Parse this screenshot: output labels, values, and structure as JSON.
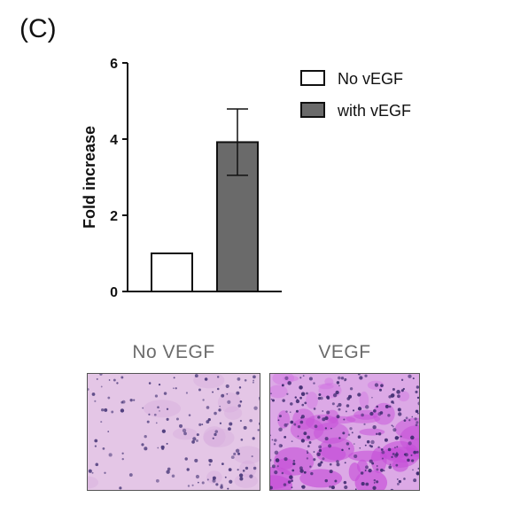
{
  "panel_label": "(C)",
  "chart_data": {
    "type": "bar",
    "categories": [
      "No vEGF",
      "with vEGF"
    ],
    "values": [
      1.0,
      3.92
    ],
    "errors": [
      0,
      0.87
    ],
    "ylabel": "Fold increase",
    "ylim": [
      0,
      6
    ],
    "yticks": [
      0,
      2,
      4,
      6
    ],
    "legend": {
      "position": "top-right",
      "entries": [
        {
          "label": "No vEGF",
          "color": "#ffffff"
        },
        {
          "label": "with vEGF",
          "color": "#6a6a6a"
        }
      ]
    },
    "grid": false
  },
  "images": {
    "left_caption": "No VEGF",
    "right_caption": "VEGF"
  },
  "colors": {
    "bar_no": "#ffffff",
    "bar_with": "#6a6a6a",
    "stain_light": "#d9a6e0",
    "stain_dense": "#c94fdc"
  }
}
